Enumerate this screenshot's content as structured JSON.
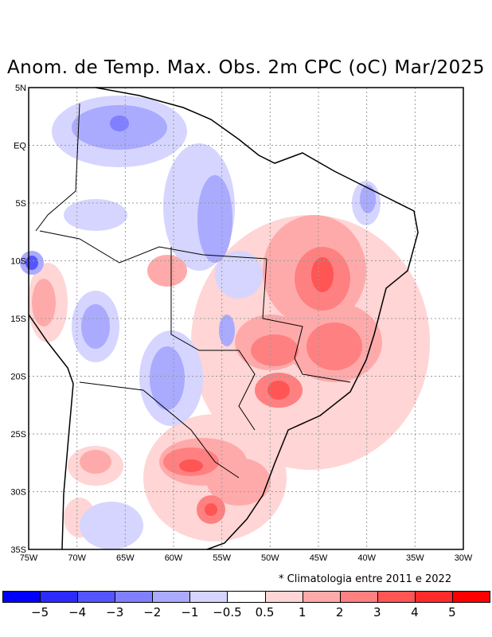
{
  "title": "Anom. de Temp. Max. Obs. 2m CPC (oC) Mar/2025",
  "note": "* Climatologia entre 2011 e 2022",
  "map": {
    "lon_labels": [
      "75W",
      "70W",
      "65W",
      "60W",
      "55W",
      "50W",
      "45W",
      "40W",
      "35W",
      "30W"
    ],
    "lat_labels": [
      "5N",
      "EQ",
      "5S",
      "10S",
      "15S",
      "20S",
      "25S",
      "30S",
      "35S"
    ],
    "lon_range": [
      -75,
      -30
    ],
    "lat_range": [
      -35,
      5
    ]
  },
  "colorbar": {
    "colors": [
      "#0000ff",
      "#2b2bff",
      "#5555ff",
      "#8080ff",
      "#aaaaff",
      "#d5d5ff",
      "#ffffff",
      "#ffd5d5",
      "#ffaaaa",
      "#ff8080",
      "#ff5555",
      "#ff2b2b",
      "#ff0000"
    ],
    "labels": [
      "−5",
      "−4",
      "−3",
      "−2",
      "−1",
      "−0.5",
      "0.5",
      "1",
      "2",
      "3",
      "4",
      "5"
    ]
  }
}
